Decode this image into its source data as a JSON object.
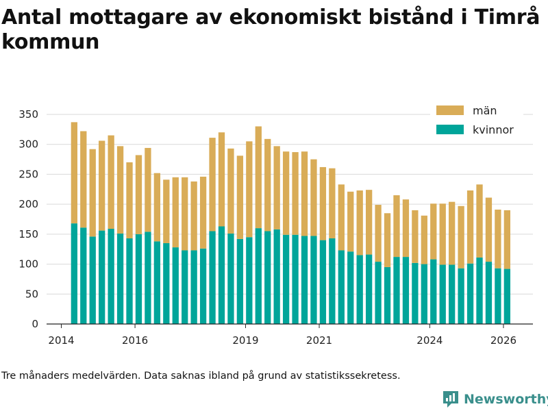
{
  "header": {
    "title": "Antal mottagare av ekonomiskt bistånd i Timrå kommun"
  },
  "footer": {
    "note": "Tre månaders medelvärden. Data saknas ibland på grund av statistikssekretess.",
    "brand": "Newsworthy",
    "brand_icon": "bar-chart-logo-icon"
  },
  "colors": {
    "man": "#d9ac57",
    "kvinnor": "#00a59a",
    "grid": "#d9d9d9",
    "axis": "#222222",
    "brand": "#3a8f8c"
  },
  "chart_data": {
    "type": "bar",
    "stacked": true,
    "xlabel": "",
    "ylabel": "",
    "ylim": [
      0,
      350
    ],
    "yticks": [
      0,
      50,
      100,
      150,
      200,
      250,
      300,
      350
    ],
    "xlim": [
      2013.6,
      2026.8
    ],
    "xticks": [
      {
        "value": 2014,
        "label": "2014"
      },
      {
        "value": 2016,
        "label": "2016"
      },
      {
        "value": 2019,
        "label": "2019"
      },
      {
        "value": 2021,
        "label": "2021"
      },
      {
        "value": 2024,
        "label": "2024"
      },
      {
        "value": 2026,
        "label": "2026"
      }
    ],
    "legend": {
      "placement": "top-right",
      "entries": [
        "män",
        "kvinnor"
      ]
    },
    "x": [
      2014.35,
      2014.6,
      2014.85,
      2015.1,
      2015.35,
      2015.6,
      2015.85,
      2016.1,
      2016.35,
      2016.6,
      2016.85,
      2017.1,
      2017.35,
      2017.6,
      2017.85,
      2018.1,
      2018.35,
      2018.6,
      2018.85,
      2019.1,
      2019.35,
      2019.6,
      2019.85,
      2020.1,
      2020.35,
      2020.6,
      2020.85,
      2021.1,
      2021.35,
      2021.6,
      2021.85,
      2022.1,
      2022.35,
      2022.6,
      2022.85,
      2023.1,
      2023.35,
      2023.6,
      2023.85,
      2024.1,
      2024.35,
      2024.6,
      2024.85,
      2025.1,
      2025.35,
      2025.6,
      2025.85,
      2026.1
    ],
    "series": [
      {
        "name": "kvinnor",
        "color_key": "kvinnor",
        "values": [
          168,
          161,
          146,
          156,
          159,
          151,
          143,
          150,
          154,
          138,
          135,
          128,
          123,
          123,
          126,
          155,
          163,
          151,
          142,
          145,
          160,
          155,
          158,
          149,
          149,
          147,
          147,
          140,
          143,
          123,
          121,
          115,
          116,
          104,
          95,
          112,
          112,
          102,
          100,
          108,
          99,
          99,
          93,
          101,
          111,
          104,
          93,
          92
        ]
      },
      {
        "name": "män",
        "color_key": "man",
        "values": [
          169,
          161,
          146,
          150,
          156,
          146,
          127,
          132,
          140,
          114,
          106,
          117,
          122,
          115,
          120,
          156,
          157,
          142,
          139,
          160,
          170,
          154,
          139,
          139,
          138,
          141,
          128,
          122,
          117,
          110,
          100,
          108,
          108,
          95,
          90,
          103,
          96,
          88,
          81,
          93,
          102,
          105,
          104,
          122,
          122,
          107,
          98,
          98
        ]
      }
    ]
  }
}
